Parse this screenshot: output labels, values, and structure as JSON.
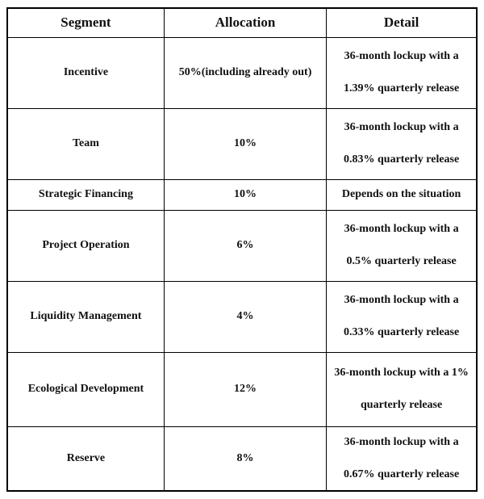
{
  "table": {
    "headers": {
      "segment": "Segment",
      "allocation": "Allocation",
      "detail": "Detail"
    },
    "rows": [
      {
        "segment": "Incentive",
        "allocation": "50%(including already out)",
        "detail1": "36-month lockup with a",
        "detail2": "1.39% quarterly release"
      },
      {
        "segment": "Team",
        "allocation": "10%",
        "detail1": "36-month lockup with a",
        "detail2": "0.83% quarterly release"
      },
      {
        "segment": "Strategic Financing",
        "allocation": "10%",
        "detail1": "Depends on the situation",
        "detail2": ""
      },
      {
        "segment": "Project Operation",
        "allocation": "6%",
        "detail1": "36-month lockup with a",
        "detail2": "0.5% quarterly release"
      },
      {
        "segment": "Liquidity Management",
        "allocation": "4%",
        "detail1": "36-month lockup with a",
        "detail2": "0.33% quarterly release"
      },
      {
        "segment": "Ecological Development",
        "allocation": "12%",
        "detail1": "36-month lockup with a 1%",
        "detail2": "quarterly release"
      },
      {
        "segment": "Reserve",
        "allocation": "8%",
        "detail1": "36-month lockup with a",
        "detail2": "0.67% quarterly release"
      }
    ],
    "colors": {
      "border": "#000000",
      "text": "#111111",
      "background": "#ffffff"
    }
  }
}
